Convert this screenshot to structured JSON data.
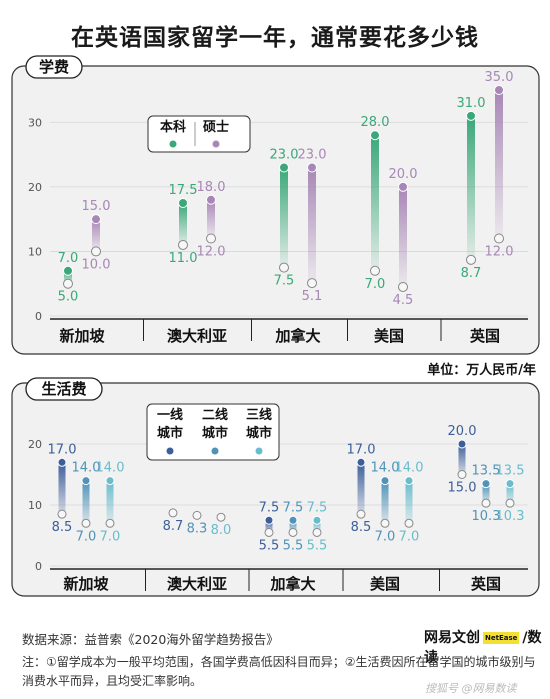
{
  "title": "在英语国家留学一年，通常要花多少钱",
  "unit": "单位：万人民币/年",
  "source": "数据来源：益普索《2020海外留学趋势报告》",
  "notes": "注：①留学成本为一般平均范围，各国学费高低因科目而异；②生活费因所在留学国的城市级别与消费水平而异，且均受汇率影响。",
  "brand": {
    "prefix": "网易文创",
    "badge": "NetEase",
    "suffix": "/数读"
  },
  "watermark": "搜狐号 @网易数读",
  "colors": {
    "undergrad": "#3aa878",
    "master": "#a887b6",
    "tier1": "#3c5f9a",
    "tier2": "#4f93b8",
    "tier3": "#69bccc",
    "panel_bg": "#f1f1f1",
    "frame": "#333333"
  },
  "chart_data": [
    {
      "type": "range",
      "title": "学费",
      "ylim": [
        0,
        35
      ],
      "yticks": [
        0,
        10,
        20,
        30
      ],
      "categories": [
        "新加坡",
        "澳大利亚",
        "加拿大",
        "美国",
        "英国"
      ],
      "legend": [
        {
          "line1": "本科"
        },
        {
          "line1": "硕士"
        }
      ],
      "series": [
        {
          "name": "本科",
          "low": [
            5.0,
            11.0,
            7.5,
            7.0,
            8.7
          ],
          "high": [
            7.0,
            17.5,
            23.0,
            28.0,
            31.0
          ]
        },
        {
          "name": "硕士",
          "low": [
            10.0,
            12.0,
            5.1,
            4.5,
            12.0
          ],
          "high": [
            15.0,
            18.0,
            23.0,
            20.0,
            35.0
          ]
        }
      ],
      "labels": {
        "low": [
          [
            "5.0",
            "11.0",
            "7.5",
            "7.0",
            "8.7"
          ],
          [
            "10.0",
            "12.0",
            "5.1",
            "4.5",
            "12.0"
          ]
        ],
        "high": [
          [
            "7.0",
            "17.5",
            "23.0",
            "28.0",
            "31.0"
          ],
          [
            "15.0",
            "18.0",
            "23.0",
            "20.0",
            "35.0"
          ]
        ]
      }
    },
    {
      "type": "range",
      "title": "生活费",
      "ylim": [
        0,
        20
      ],
      "yticks": [
        0,
        10,
        20
      ],
      "categories": [
        "新加坡",
        "澳大利亚",
        "加拿大",
        "美国",
        "英国"
      ],
      "legend": [
        {
          "line1": "一线",
          "line2": "城市"
        },
        {
          "line1": "二线",
          "line2": "城市"
        },
        {
          "line1": "三线",
          "line2": "城市"
        }
      ],
      "series": [
        {
          "name": "一线城市",
          "low": [
            8.5,
            8.7,
            5.5,
            8.5,
            15.0
          ],
          "high": [
            17.0,
            8.7,
            7.5,
            17.0,
            20.0
          ]
        },
        {
          "name": "二线城市",
          "low": [
            7.0,
            8.3,
            5.5,
            7.0,
            10.3
          ],
          "high": [
            14.0,
            8.3,
            7.5,
            14.0,
            13.5
          ]
        },
        {
          "name": "三线城市",
          "low": [
            7.0,
            8.0,
            5.5,
            7.0,
            10.3
          ],
          "high": [
            14.0,
            8.0,
            7.5,
            14.0,
            13.5
          ]
        }
      ],
      "labels": {
        "low": [
          [
            "8.5",
            "8.7",
            "5.5",
            "8.5",
            "15.0"
          ],
          [
            "7.0",
            "8.3",
            "5.5",
            "7.0",
            "10.3"
          ],
          [
            "7.0",
            "8.0",
            "5.5",
            "7.0",
            "10.3"
          ]
        ],
        "high": [
          [
            "17.0",
            "",
            "7.5",
            "17.0",
            "20.0"
          ],
          [
            "14.0",
            "",
            "7.5",
            "14.0",
            "13.5"
          ],
          [
            "14.0",
            "",
            "7.5",
            "14.0",
            "13.5"
          ]
        ]
      }
    }
  ]
}
